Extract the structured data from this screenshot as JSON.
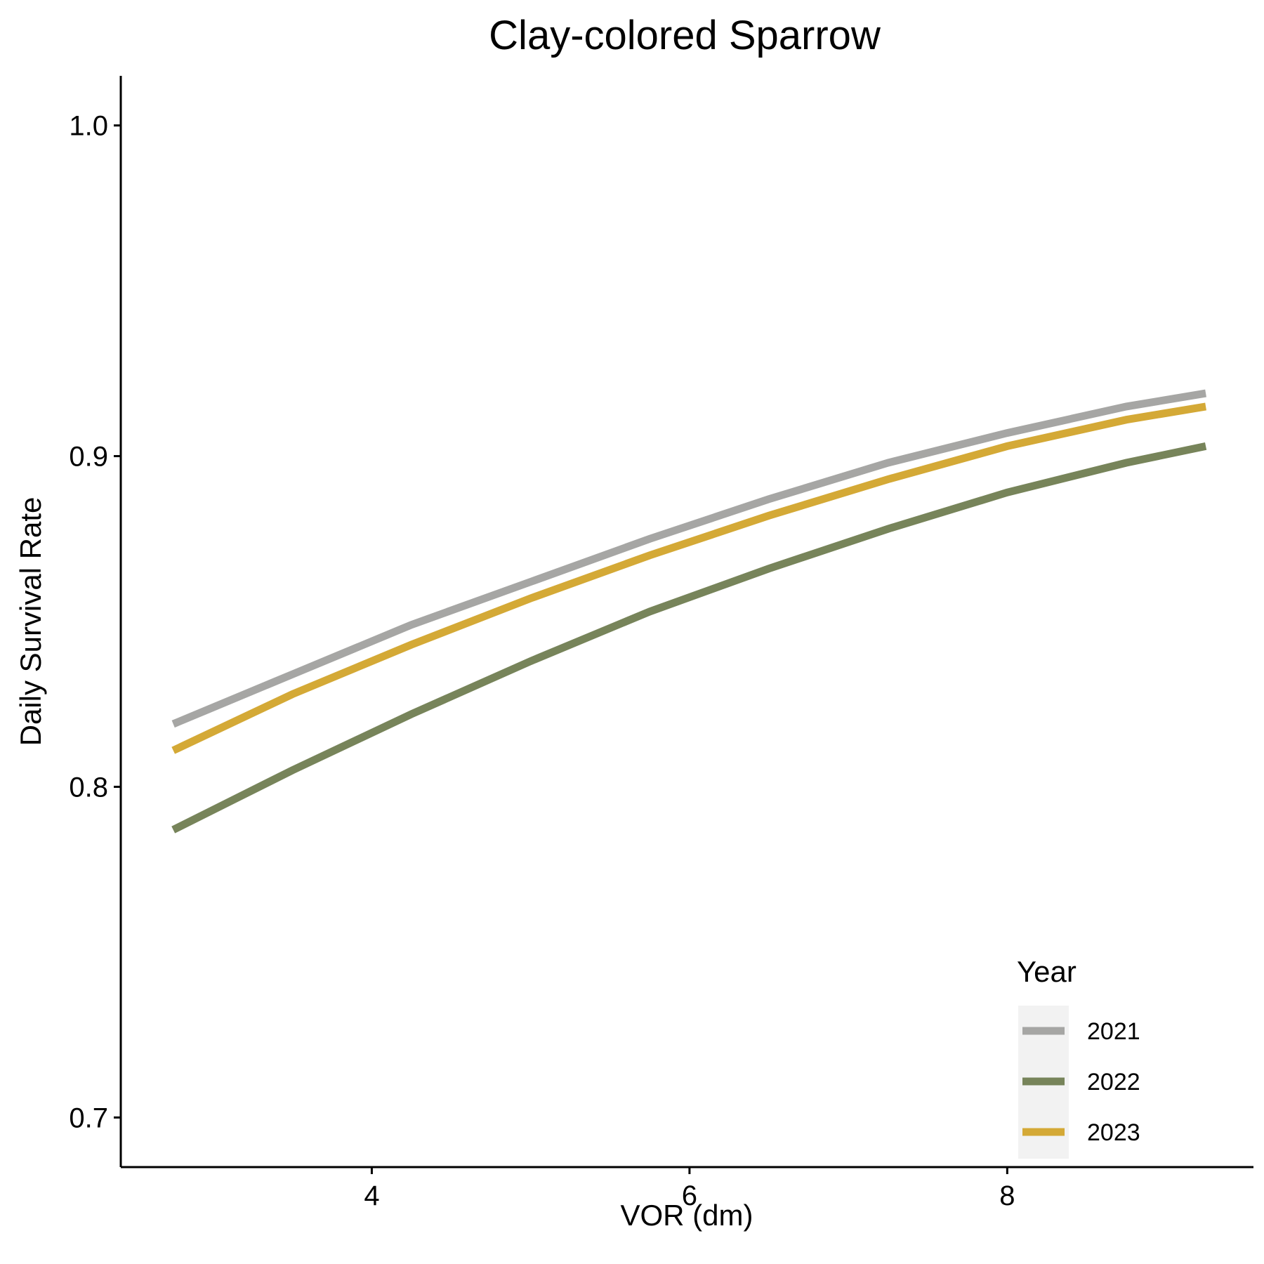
{
  "chart_data": {
    "type": "line",
    "title": "Clay-colored Sparrow",
    "xlabel": "VOR (dm)",
    "ylabel": "Daily Survival Rate",
    "xlim": [
      2.42,
      9.55
    ],
    "ylim": [
      0.685,
      1.015
    ],
    "xticks": [
      4,
      6,
      8
    ],
    "yticks": [
      0.7,
      0.8,
      0.9,
      1.0
    ],
    "ytick_labels": [
      "0.7",
      "0.8",
      "0.9",
      "1.0"
    ],
    "grid": false,
    "legend": {
      "title": "Year",
      "position": "bottom-right"
    },
    "x": [
      2.75,
      3.5,
      4.25,
      5.0,
      5.75,
      6.5,
      7.25,
      8.0,
      8.75,
      9.25
    ],
    "series": [
      {
        "name": "2021",
        "color": "#A6A6A4",
        "values": [
          0.819,
          0.834,
          0.849,
          0.862,
          0.875,
          0.887,
          0.898,
          0.907,
          0.915,
          0.919
        ]
      },
      {
        "name": "2022",
        "color": "#77845A",
        "values": [
          0.787,
          0.805,
          0.822,
          0.838,
          0.853,
          0.866,
          0.878,
          0.889,
          0.898,
          0.903
        ]
      },
      {
        "name": "2023",
        "color": "#D4A936",
        "values": [
          0.811,
          0.828,
          0.843,
          0.857,
          0.87,
          0.882,
          0.893,
          0.903,
          0.911,
          0.915
        ]
      }
    ]
  }
}
